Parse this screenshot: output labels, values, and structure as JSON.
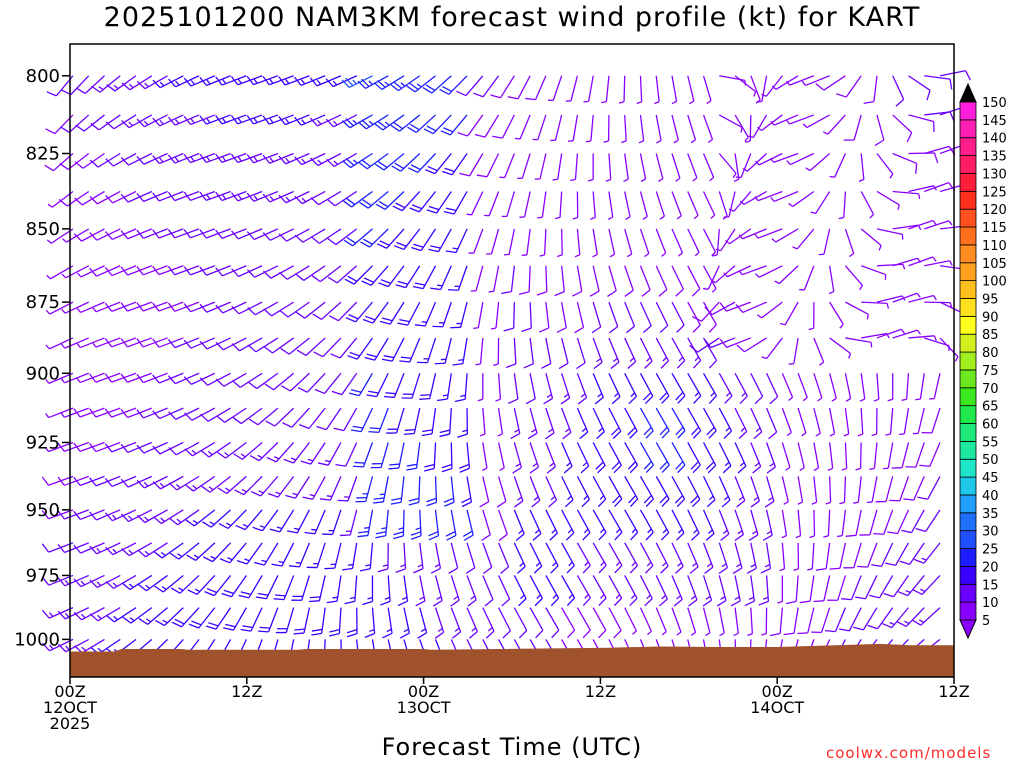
{
  "title": "2025101200 NAM3KM forecast wind profile (kt) for KART",
  "credit": "coolwx.com/models",
  "chart_data": {
    "type": "wind-barb-profile",
    "title": "2025101200 NAM3KM forecast wind profile (kt) for KART",
    "xlabel": "Forecast Time (UTC)",
    "ylabel": "",
    "x_ticks": [
      {
        "hour": 0,
        "label": "00Z",
        "sub": [
          "12OCT",
          "2025"
        ]
      },
      {
        "hour": 12,
        "label": "12Z",
        "sub": []
      },
      {
        "hour": 24,
        "label": "00Z",
        "sub": [
          "13OCT"
        ]
      },
      {
        "hour": 36,
        "label": "12Z",
        "sub": []
      },
      {
        "hour": 48,
        "label": "00Z",
        "sub": [
          "14OCT"
        ]
      },
      {
        "hour": 60,
        "label": "12Z",
        "sub": []
      }
    ],
    "xlim": [
      0,
      60
    ],
    "y_ticks": [
      800,
      825,
      850,
      875,
      900,
      925,
      950,
      975,
      1000
    ],
    "ylim": [
      790,
      1015
    ],
    "y_scale": "log-pressure",
    "colorbar": {
      "levels": [
        5,
        10,
        15,
        20,
        25,
        30,
        35,
        40,
        45,
        50,
        55,
        60,
        65,
        70,
        75,
        80,
        85,
        90,
        95,
        100,
        105,
        110,
        115,
        120,
        125,
        130,
        135,
        140,
        145,
        150
      ],
      "colors": [
        "#8a00ff",
        "#6a00ff",
        "#3a00ff",
        "#1e1eff",
        "#1f4fff",
        "#1f70ff",
        "#1fa0ff",
        "#1ec8e8",
        "#1ee6c8",
        "#1ee8a0",
        "#1ee878",
        "#1ee84a",
        "#3ce81e",
        "#6ee81e",
        "#a0ee1e",
        "#d2f01e",
        "#ffff1e",
        "#ffe01e",
        "#ffc01e",
        "#ffa01e",
        "#ff8c1e",
        "#ff701e",
        "#ff501e",
        "#ff301e",
        "#ff1e3c",
        "#ff1e64",
        "#ff1e8c",
        "#ff1eb4",
        "#ff1edc",
        "#ff1eff"
      ],
      "min_arrow_color": "#8a00ff",
      "max_arrow_color": "#000000"
    },
    "terrain_color": "#a0522d",
    "terrain_surface_pressure": [
      {
        "hour": 0,
        "p": 1005
      },
      {
        "hour": 3,
        "p": 1005
      },
      {
        "hour": 3.5,
        "p": 1004
      },
      {
        "hour": 7.5,
        "p": 1004
      },
      {
        "hour": 8,
        "p": 1004.3
      },
      {
        "hour": 15.5,
        "p": 1004.3
      },
      {
        "hour": 16,
        "p": 1004
      },
      {
        "hour": 24,
        "p": 1004
      },
      {
        "hour": 24.5,
        "p": 1004.3
      },
      {
        "hour": 36.5,
        "p": 1003.5
      },
      {
        "hour": 40,
        "p": 1003
      },
      {
        "hour": 44,
        "p": 1003.2
      },
      {
        "hour": 48,
        "p": 1003.2
      },
      {
        "hour": 52,
        "p": 1002.5
      },
      {
        "hour": 55,
        "p": 1002
      },
      {
        "hour": 57,
        "p": 1002.5
      },
      {
        "hour": 60,
        "p": 1002.5
      }
    ]
  }
}
